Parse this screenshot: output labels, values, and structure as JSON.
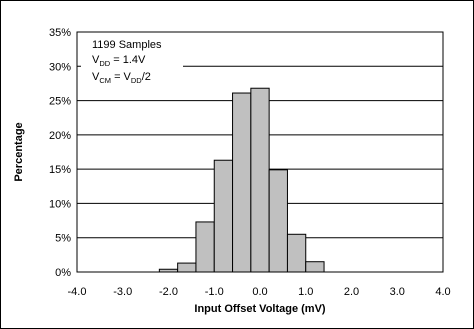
{
  "chart_data": {
    "type": "bar",
    "xlabel": "Input Offset Voltage (mV)",
    "ylabel": "Percentage",
    "ylim": [
      0,
      35
    ],
    "xlim": [
      -4.0,
      4.0
    ],
    "bin_width": 0.4,
    "x_ticks": [
      "-4.0",
      "-3.0",
      "-2.0",
      "-1.0",
      "0.0",
      "1.0",
      "2.0",
      "3.0",
      "4.0"
    ],
    "y_ticks": [
      "0%",
      "5%",
      "10%",
      "15%",
      "20%",
      "25%",
      "30%",
      "35%"
    ],
    "bin_centers": [
      -2.0,
      -1.6,
      -1.2,
      -0.8,
      -0.4,
      0.0,
      0.4,
      0.8,
      1.2,
      1.6,
      2.0
    ],
    "values": [
      0.4,
      1.3,
      7.3,
      16.3,
      26.1,
      26.8,
      14.9,
      5.5,
      1.5,
      0.0,
      0.0
    ],
    "grid": "horizontal",
    "bar_color": "#c0c0c0",
    "annotation": {
      "line1": "1199 Samples",
      "line2_prefix": "V",
      "line2_sub": "DD",
      "line2_suffix": " = 1.4V",
      "line3_prefix": "V",
      "line3_sub": "CM",
      "line3_mid": " = V",
      "line3_sub2": "DD",
      "line3_suffix": "/2"
    }
  }
}
